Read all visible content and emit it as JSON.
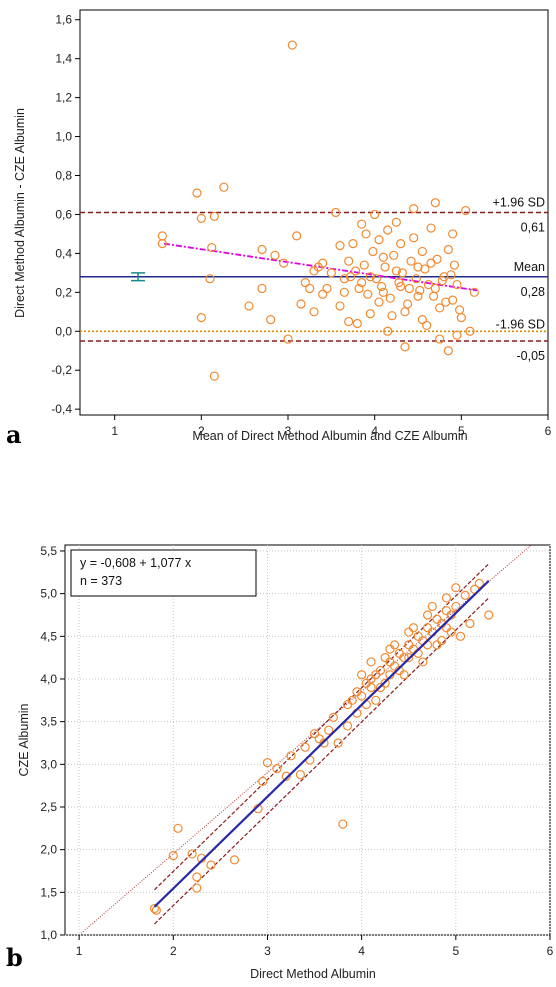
{
  "chart_data": [
    {
      "panel_label": "a",
      "type": "scatter",
      "subtype": "bland-altman",
      "xlabel": "Mean of Direct  Method  Albumin and CZE  Albumin",
      "ylabel": "Direct Method Albumin - CZE  Albumin",
      "xlim": [
        0.6,
        6
      ],
      "ylim": [
        -0.43,
        1.65
      ],
      "x_ticks": [
        1,
        2,
        3,
        4,
        5,
        6
      ],
      "x_tick_labels": [
        "1",
        "2",
        "3",
        "4",
        "5",
        "6"
      ],
      "y_ticks": [
        -0.4,
        -0.2,
        0.0,
        0.2,
        0.4,
        0.6,
        0.8,
        1.0,
        1.2,
        1.4,
        1.6
      ],
      "y_tick_labels": [
        "-0,4",
        "-0,2",
        "0,0",
        "0,2",
        "0,4",
        "0,6",
        "0,8",
        "1,0",
        "1,2",
        "1,4",
        "1,6"
      ],
      "grid": false,
      "reference_lines": {
        "upper_loa": {
          "label": "+1.96 SD",
          "value_label": "0,61",
          "y": 0.61,
          "color": "#8b1a1a"
        },
        "mean": {
          "label": "Mean",
          "value_label": "0,28",
          "y": 0.28,
          "color": "#1f2a8a"
        },
        "lower_loa": {
          "label": "-1.96 SD",
          "value_label": "-0,05",
          "y": -0.05,
          "color": "#8b1a1a"
        },
        "zero": {
          "y": 0.0,
          "color": "#d98c00"
        }
      },
      "regression_line": {
        "x": [
          1.57,
          5.18
        ],
        "y": [
          0.45,
          0.21
        ],
        "color": "#e000e0"
      },
      "mean_ci_marker": {
        "x": 1.27,
        "y_low": 0.26,
        "y_high": 0.3,
        "color": "#1a8a8a"
      },
      "point_color": "#f28a30",
      "points": [
        [
          3.05,
          1.47
        ],
        [
          1.95,
          0.71
        ],
        [
          2.26,
          0.74
        ],
        [
          1.55,
          0.49
        ],
        [
          1.55,
          0.45
        ],
        [
          2.12,
          0.43
        ],
        [
          2.0,
          0.58
        ],
        [
          2.15,
          0.59
        ],
        [
          2.7,
          0.42
        ],
        [
          2.1,
          0.27
        ],
        [
          2.0,
          0.07
        ],
        [
          2.15,
          -0.23
        ],
        [
          2.55,
          0.13
        ],
        [
          2.7,
          0.22
        ],
        [
          2.8,
          0.06
        ],
        [
          2.85,
          0.39
        ],
        [
          2.95,
          0.35
        ],
        [
          3.0,
          -0.04
        ],
        [
          3.1,
          0.49
        ],
        [
          3.15,
          0.14
        ],
        [
          3.2,
          0.25
        ],
        [
          3.25,
          0.22
        ],
        [
          3.3,
          0.1
        ],
        [
          3.35,
          0.33
        ],
        [
          3.4,
          0.19
        ],
        [
          3.45,
          0.22
        ],
        [
          3.5,
          0.3
        ],
        [
          3.55,
          0.61
        ],
        [
          3.6,
          0.13
        ],
        [
          3.65,
          0.2
        ],
        [
          3.7,
          0.36
        ],
        [
          3.75,
          0.45
        ],
        [
          3.8,
          0.04
        ],
        [
          3.85,
          0.25
        ],
        [
          3.9,
          0.5
        ],
        [
          3.95,
          0.28
        ],
        [
          4.0,
          0.6
        ],
        [
          4.05,
          0.15
        ],
        [
          4.1,
          0.38
        ],
        [
          4.15,
          0.52
        ],
        [
          4.2,
          0.08
        ],
        [
          4.25,
          0.31
        ],
        [
          4.3,
          0.45
        ],
        [
          4.35,
          -0.08
        ],
        [
          4.4,
          0.22
        ],
        [
          4.45,
          0.63
        ],
        [
          4.5,
          0.18
        ],
        [
          4.55,
          0.41
        ],
        [
          4.6,
          0.03
        ],
        [
          4.65,
          0.35
        ],
        [
          4.7,
          0.66
        ],
        [
          4.75,
          0.12
        ],
        [
          4.8,
          0.28
        ],
        [
          4.85,
          -0.1
        ],
        [
          4.9,
          0.5
        ],
        [
          4.95,
          0.24
        ],
        [
          5.0,
          0.07
        ],
        [
          5.05,
          0.62
        ],
        [
          5.1,
          0.0
        ],
        [
          5.15,
          0.2
        ],
        [
          3.72,
          0.28
        ],
        [
          3.78,
          0.31
        ],
        [
          3.82,
          0.22
        ],
        [
          3.88,
          0.34
        ],
        [
          3.92,
          0.19
        ],
        [
          3.98,
          0.41
        ],
        [
          4.02,
          0.27
        ],
        [
          4.08,
          0.23
        ],
        [
          4.12,
          0.33
        ],
        [
          4.18,
          0.17
        ],
        [
          4.22,
          0.39
        ],
        [
          4.28,
          0.25
        ],
        [
          4.32,
          0.3
        ],
        [
          4.38,
          0.14
        ],
        [
          4.42,
          0.36
        ],
        [
          4.48,
          0.27
        ],
        [
          4.52,
          0.21
        ],
        [
          4.58,
          0.32
        ],
        [
          4.62,
          0.24
        ],
        [
          4.68,
          0.18
        ],
        [
          4.72,
          0.37
        ],
        [
          4.78,
          0.26
        ],
        [
          4.82,
          0.15
        ],
        [
          4.88,
          0.29
        ],
        [
          4.92,
          0.34
        ],
        [
          4.98,
          0.11
        ],
        [
          3.6,
          0.44
        ],
        [
          3.7,
          0.05
        ],
        [
          3.85,
          0.55
        ],
        [
          3.95,
          0.09
        ],
        [
          4.05,
          0.47
        ],
        [
          4.15,
          0.0
        ],
        [
          4.25,
          0.56
        ],
        [
          4.35,
          0.1
        ],
        [
          4.45,
          0.48
        ],
        [
          4.55,
          0.06
        ],
        [
          4.65,
          0.53
        ],
        [
          4.75,
          -0.04
        ],
        [
          4.85,
          0.42
        ],
        [
          4.95,
          -0.02
        ],
        [
          3.4,
          0.35
        ],
        [
          3.3,
          0.31
        ],
        [
          3.65,
          0.27
        ],
        [
          4.1,
          0.2
        ],
        [
          4.3,
          0.23
        ],
        [
          4.5,
          0.33
        ],
        [
          4.7,
          0.22
        ],
        [
          4.9,
          0.16
        ]
      ]
    },
    {
      "panel_label": "b",
      "type": "scatter",
      "subtype": "regression",
      "xlabel": "Direct  Method  Albumin",
      "ylabel": "CZE Albumin",
      "xlim": [
        0.85,
        6
      ],
      "ylim": [
        1.0,
        5.57
      ],
      "x_ticks": [
        1,
        2,
        3,
        4,
        5,
        6
      ],
      "x_tick_labels": [
        "1",
        "2",
        "3",
        "4",
        "5",
        "6"
      ],
      "y_ticks": [
        1.0,
        1.5,
        2.0,
        2.5,
        3.0,
        3.5,
        4.0,
        4.5,
        5.0,
        5.5
      ],
      "y_tick_labels": [
        "1,0",
        "1,5",
        "2,0",
        "2,5",
        "3,0",
        "3,5",
        "4,0",
        "4,5",
        "5,0",
        "5,5"
      ],
      "grid": true,
      "equation_box": {
        "line1": "y = -0,608  +  1,077  x",
        "line2": "n = 373"
      },
      "fit_line": {
        "x": [
          1.8,
          5.35
        ],
        "y": [
          1.33,
          5.15
        ],
        "color": "#2a2aa8"
      },
      "identity_line": {
        "x": [
          1.0,
          5.8
        ],
        "y": [
          1.0,
          5.57
        ],
        "color": "#b23a3a"
      },
      "prediction_band": {
        "upper": {
          "x": [
            1.8,
            5.35
          ],
          "y": [
            1.53,
            5.35
          ]
        },
        "lower": {
          "x": [
            1.8,
            5.35
          ],
          "y": [
            1.13,
            4.95
          ]
        },
        "color": "#8b1a1a"
      },
      "point_color": "#f28a30",
      "points": [
        [
          1.8,
          1.31
        ],
        [
          1.82,
          1.29
        ],
        [
          2.0,
          1.93
        ],
        [
          2.05,
          2.25
        ],
        [
          2.2,
          1.95
        ],
        [
          2.25,
          1.55
        ],
        [
          2.25,
          1.68
        ],
        [
          2.3,
          1.9
        ],
        [
          2.4,
          1.82
        ],
        [
          2.65,
          1.88
        ],
        [
          2.9,
          2.48
        ],
        [
          2.95,
          2.8
        ],
        [
          3.0,
          3.02
        ],
        [
          3.1,
          2.95
        ],
        [
          3.2,
          2.86
        ],
        [
          3.25,
          3.1
        ],
        [
          3.35,
          2.88
        ],
        [
          3.4,
          3.2
        ],
        [
          3.5,
          3.36
        ],
        [
          3.6,
          3.25
        ],
        [
          3.7,
          3.55
        ],
        [
          3.75,
          3.25
        ],
        [
          3.8,
          2.3
        ],
        [
          3.85,
          3.7
        ],
        [
          3.9,
          3.75
        ],
        [
          3.95,
          3.85
        ],
        [
          4.0,
          3.8
        ],
        [
          4.05,
          3.95
        ],
        [
          4.1,
          3.9
        ],
        [
          4.15,
          4.05
        ],
        [
          4.2,
          4.1
        ],
        [
          4.25,
          3.95
        ],
        [
          4.3,
          4.2
        ],
        [
          4.35,
          4.15
        ],
        [
          4.4,
          4.3
        ],
        [
          4.45,
          4.25
        ],
        [
          4.5,
          4.4
        ],
        [
          4.55,
          4.35
        ],
        [
          4.6,
          4.5
        ],
        [
          4.65,
          4.45
        ],
        [
          4.7,
          4.6
        ],
        [
          4.75,
          4.55
        ],
        [
          4.8,
          4.7
        ],
        [
          4.85,
          4.65
        ],
        [
          4.9,
          4.8
        ],
        [
          4.95,
          4.75
        ],
        [
          5.0,
          4.85
        ],
        [
          5.05,
          4.5
        ],
        [
          5.1,
          4.98
        ],
        [
          5.15,
          4.65
        ],
        [
          5.2,
          5.05
        ],
        [
          5.25,
          5.12
        ],
        [
          5.35,
          4.75
        ],
        [
          5.0,
          5.07
        ],
        [
          4.1,
          4.2
        ],
        [
          4.2,
          3.9
        ],
        [
          4.3,
          4.35
        ],
        [
          4.4,
          4.1
        ],
        [
          4.5,
          4.55
        ],
        [
          4.6,
          4.3
        ],
        [
          4.7,
          4.75
        ],
        [
          4.8,
          4.4
        ],
        [
          4.9,
          4.6
        ],
        [
          4.15,
          3.75
        ],
        [
          4.25,
          4.25
        ],
        [
          4.35,
          4.4
        ],
        [
          4.45,
          4.05
        ],
        [
          4.55,
          4.6
        ],
        [
          4.65,
          4.2
        ],
        [
          4.75,
          4.85
        ],
        [
          4.85,
          4.45
        ],
        [
          4.95,
          4.55
        ],
        [
          3.95,
          3.6
        ],
        [
          4.05,
          3.7
        ],
        [
          3.85,
          3.45
        ],
        [
          3.65,
          3.4
        ],
        [
          3.55,
          3.3
        ],
        [
          3.45,
          3.05
        ],
        [
          4.0,
          4.05
        ],
        [
          4.1,
          4.0
        ],
        [
          4.3,
          4.05
        ],
        [
          4.5,
          4.25
        ],
        [
          4.7,
          4.4
        ],
        [
          4.9,
          4.95
        ]
      ]
    }
  ]
}
